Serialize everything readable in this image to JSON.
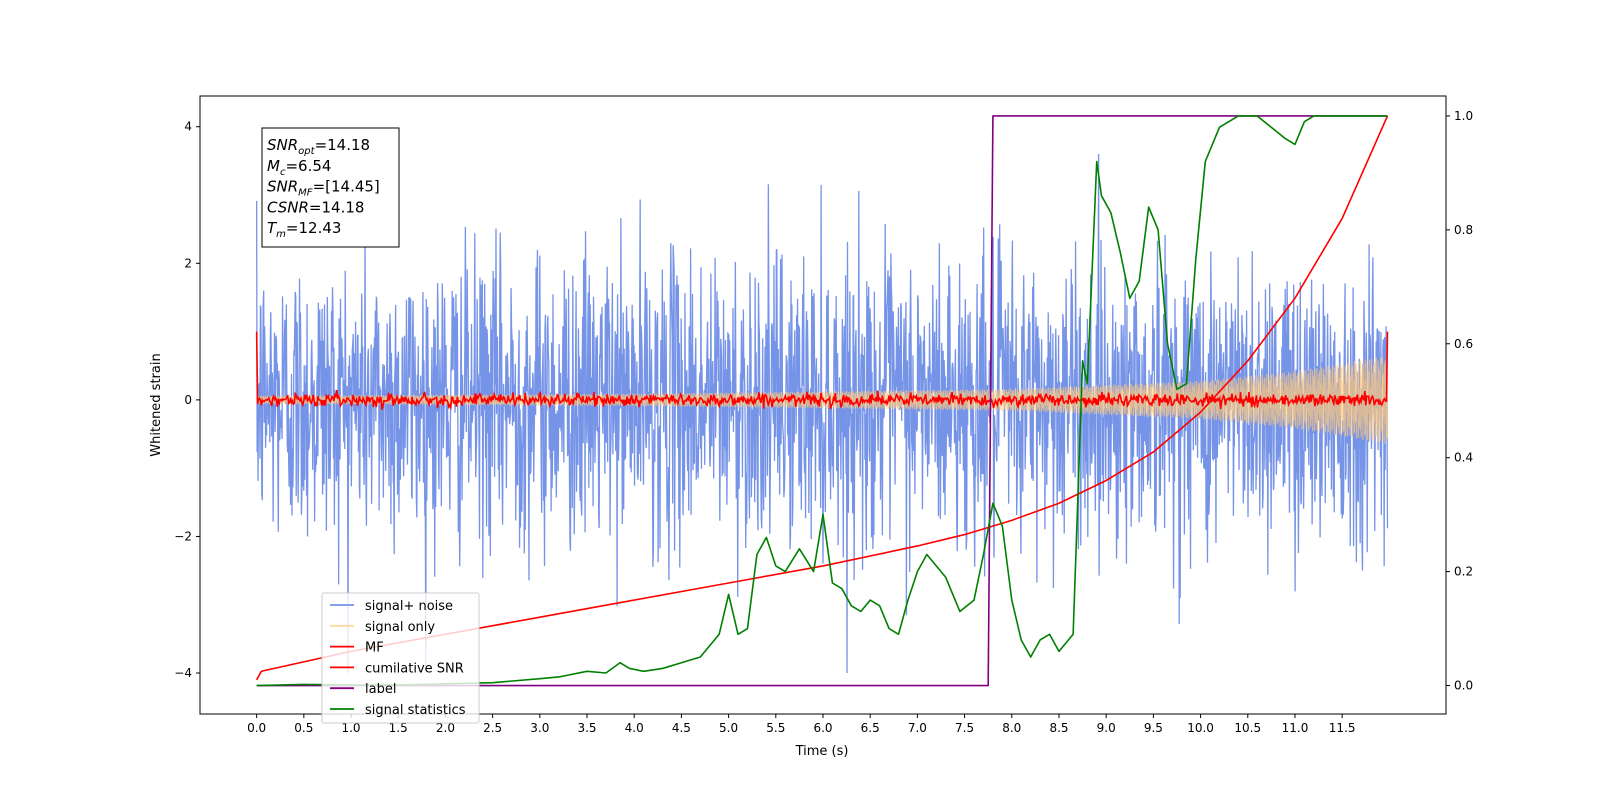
{
  "chart_data": {
    "type": "line",
    "title": "",
    "xlabel": "Time (s)",
    "ylabel_left": "Whitened strain",
    "ylabel_right": "",
    "xlim": [
      -0.6,
      12.6
    ],
    "ylim_left": [
      -4.6,
      4.45
    ],
    "ylim_right": [
      -0.05,
      1.035
    ],
    "x_ticks": [
      "0.0",
      "0.5",
      "1.0",
      "1.5",
      "2.0",
      "2.5",
      "3.0",
      "3.5",
      "4.0",
      "4.5",
      "5.0",
      "5.5",
      "6.0",
      "6.5",
      "7.0",
      "7.5",
      "8.0",
      "8.5",
      "9.0",
      "9.5",
      "10.0",
      "10.5",
      "11.0",
      "11.5"
    ],
    "y_ticks_left": [
      -4,
      -2,
      0,
      2,
      4
    ],
    "y_ticks_right": [
      "0.0",
      "0.2",
      "0.4",
      "0.6",
      "0.8",
      "1.0"
    ],
    "grid": false,
    "legend_position": "lower-left",
    "annotation_box": {
      "position": "top-left",
      "lines": [
        {
          "sym": "SNR",
          "sub": "opt",
          "val": "=14.18"
        },
        {
          "sym": "M",
          "sub": "c",
          "val": "=6.54"
        },
        {
          "sym": "SNR",
          "sub": "MF",
          "val": "=[14.45]"
        },
        {
          "sym": "CSNR",
          "sub": "",
          "val": "=14.18"
        },
        {
          "sym": "T",
          "sub": "m",
          "val": "=12.43"
        }
      ]
    },
    "series": [
      {
        "name": "signal+ noise",
        "axis": "left",
        "color": "#6f8ee6",
        "description_range": [
          -4.0,
          4.0
        ]
      },
      {
        "name": "signal only",
        "axis": "left",
        "color": "#ffc87a",
        "envelope": {
          "x": [
            0,
            4,
            8,
            10,
            11,
            11.98
          ],
          "amp": [
            0.06,
            0.09,
            0.16,
            0.28,
            0.42,
            0.65
          ]
        }
      },
      {
        "name": "MF",
        "axis": "left",
        "color": "#ff0000",
        "endpoints": [
          [
            0,
            1.0
          ],
          [
            11.98,
            1.0
          ]
        ]
      },
      {
        "name": "cumilative SNR",
        "axis": "right",
        "color": "#ff0000",
        "x": [
          0,
          0.05,
          1,
          2,
          3,
          4,
          5,
          6,
          7,
          7.5,
          8,
          8.5,
          9,
          9.5,
          10,
          10.5,
          11,
          11.5,
          11.98
        ],
        "y": [
          0.01,
          0.025,
          0.06,
          0.09,
          0.12,
          0.15,
          0.18,
          0.21,
          0.245,
          0.265,
          0.29,
          0.32,
          0.36,
          0.41,
          0.48,
          0.57,
          0.68,
          0.82,
          1.0
        ]
      },
      {
        "name": "label",
        "axis": "right",
        "color": "#800080",
        "x": [
          0,
          7.75,
          7.8,
          11.98
        ],
        "y": [
          0.0,
          0.0,
          1.0,
          1.0
        ]
      },
      {
        "name": "signal statistics",
        "axis": "right",
        "color": "#008000",
        "x": [
          0,
          0.5,
          1,
          1.5,
          2,
          2.5,
          3,
          3.2,
          3.5,
          3.7,
          3.85,
          3.95,
          4.1,
          4.3,
          4.5,
          4.7,
          4.9,
          5.0,
          5.1,
          5.2,
          5.3,
          5.4,
          5.5,
          5.6,
          5.75,
          5.9,
          6.0,
          6.1,
          6.2,
          6.3,
          6.4,
          6.5,
          6.6,
          6.7,
          6.8,
          6.9,
          7.0,
          7.1,
          7.2,
          7.3,
          7.45,
          7.6,
          7.7,
          7.8,
          7.9,
          8.0,
          8.1,
          8.2,
          8.3,
          8.4,
          8.5,
          8.65,
          8.75,
          8.8,
          8.9,
          8.95,
          9.05,
          9.15,
          9.25,
          9.35,
          9.45,
          9.55,
          9.65,
          9.75,
          9.85,
          9.95,
          10.05,
          10.2,
          10.4,
          10.6,
          10.75,
          10.9,
          11.0,
          11.1,
          11.2,
          11.3,
          11.98
        ],
        "y": [
          0.0,
          0.002,
          0.001,
          0.001,
          0.003,
          0.005,
          0.012,
          0.015,
          0.025,
          0.022,
          0.04,
          0.03,
          0.025,
          0.03,
          0.04,
          0.05,
          0.09,
          0.16,
          0.09,
          0.1,
          0.23,
          0.26,
          0.21,
          0.2,
          0.24,
          0.2,
          0.3,
          0.18,
          0.17,
          0.14,
          0.13,
          0.15,
          0.14,
          0.1,
          0.09,
          0.15,
          0.2,
          0.23,
          0.21,
          0.19,
          0.13,
          0.15,
          0.23,
          0.32,
          0.28,
          0.15,
          0.08,
          0.05,
          0.08,
          0.09,
          0.06,
          0.09,
          0.57,
          0.53,
          0.92,
          0.86,
          0.83,
          0.76,
          0.68,
          0.71,
          0.84,
          0.8,
          0.6,
          0.52,
          0.53,
          0.75,
          0.92,
          0.98,
          1.0,
          1.0,
          0.98,
          0.96,
          0.95,
          0.99,
          1.0,
          1.0,
          1.0
        ]
      }
    ]
  }
}
